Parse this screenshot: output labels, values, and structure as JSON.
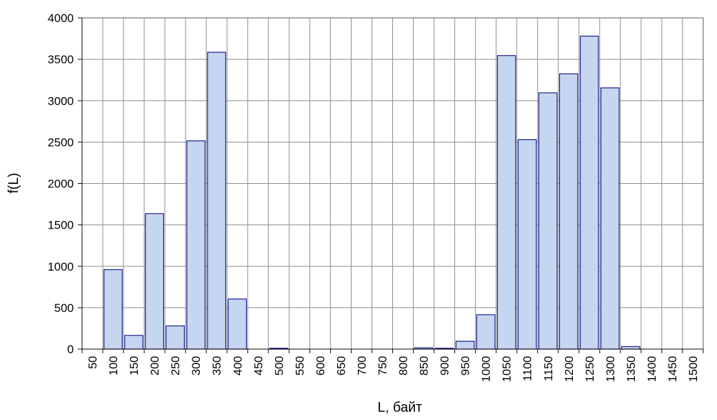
{
  "chart_data": {
    "type": "bar",
    "x_label": "L,  байт",
    "y_label": "f(L)",
    "categories": [
      "50",
      "100",
      "150",
      "200",
      "250",
      "300",
      "350",
      "400",
      "450",
      "500",
      "550",
      "600",
      "650",
      "700",
      "750",
      "800",
      "850",
      "900",
      "950",
      "1000",
      "1050",
      "1100",
      "1150",
      "1200",
      "1250",
      "1300",
      "1350",
      "1400",
      "1450",
      "1500"
    ],
    "values": [
      0,
      960,
      165,
      1635,
      280,
      2515,
      3585,
      605,
      0,
      10,
      0,
      0,
      0,
      0,
      0,
      0,
      15,
      10,
      95,
      415,
      3545,
      2530,
      3095,
      3325,
      3780,
      3155,
      30,
      0,
      0,
      0
    ],
    "color": "#c6d6f0",
    "edge_color": "#1a1a8c",
    "ylim": [
      0,
      4000
    ],
    "yticks": [
      0,
      500,
      1000,
      1500,
      2000,
      2500,
      3000,
      3500,
      4000
    ],
    "grid": true
  }
}
